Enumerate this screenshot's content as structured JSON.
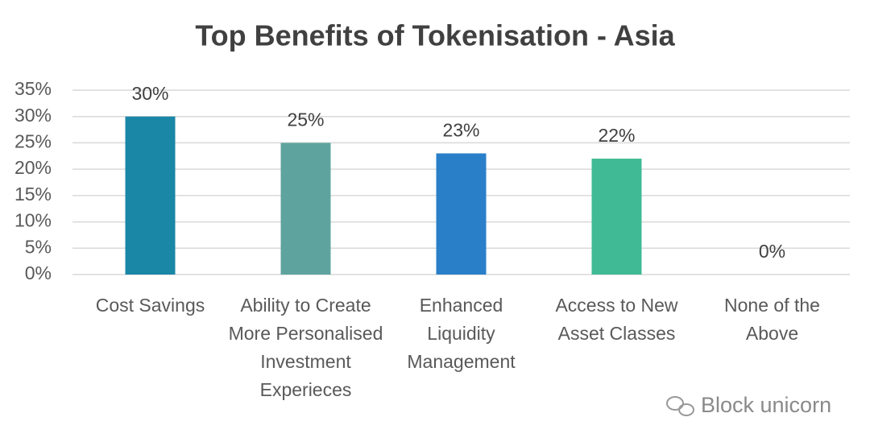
{
  "chart_data": {
    "type": "bar",
    "title": "Top Benefits of Tokenisation - Asia",
    "categories": [
      "Cost Savings",
      "Ability to Create More Personalised Investment Experieces",
      "Enhanced Liquidity Management",
      "Access to New Asset Classes",
      "None of the Above"
    ],
    "values": [
      30,
      25,
      23,
      22,
      0
    ],
    "value_labels": [
      "30%",
      "25%",
      "23%",
      "22%",
      "0%"
    ],
    "colors": [
      "#1a87a6",
      "#5fa39e",
      "#2a7fc9",
      "#3fba94",
      "#3fba94"
    ],
    "ylim": [
      0,
      35
    ],
    "yticks": [
      {
        "value": 0,
        "label": "0%"
      },
      {
        "value": 5,
        "label": "5%"
      },
      {
        "value": 10,
        "label": "10%"
      },
      {
        "value": 15,
        "label": "15%"
      },
      {
        "value": 20,
        "label": "20%"
      },
      {
        "value": 25,
        "label": "25%"
      },
      {
        "value": 30,
        "label": "30%"
      },
      {
        "value": 35,
        "label": "35%"
      }
    ],
    "grid": true
  },
  "watermark": "Block unicorn"
}
